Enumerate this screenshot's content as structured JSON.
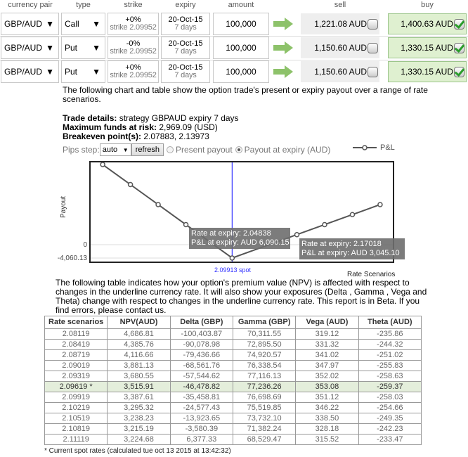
{
  "headers": {
    "pair": "currency pair",
    "type": "type",
    "strike": "strike",
    "expiry": "expiry",
    "amount": "amount",
    "sell": "sell",
    "buy": "buy"
  },
  "legs": [
    {
      "pair": "GBP/AUD",
      "type": "Call",
      "strike_pct": "+0%",
      "strike": "strike 2.09952",
      "expiry_date": "20-Oct-15",
      "expiry_days": "7 days",
      "amount": "100,000",
      "sell": "1,221.08 AUD",
      "sell_checked": false,
      "buy": "1,400.63 AUD",
      "buy_checked": true
    },
    {
      "pair": "GBP/AUD",
      "type": "Put",
      "strike_pct": "-0%",
      "strike": "strike 2.09952",
      "expiry_date": "20-Oct-15",
      "expiry_days": "7 days",
      "amount": "100,000",
      "sell": "1,150.60 AUD",
      "sell_checked": false,
      "buy": "1,330.15 AUD",
      "buy_checked": true
    },
    {
      "pair": "GBP/AUD",
      "type": "Put",
      "strike_pct": "+0%",
      "strike": "strike 2.09952",
      "expiry_date": "20-Oct-15",
      "expiry_days": "7 days",
      "amount": "100,000",
      "sell": "1,150.60 AUD",
      "sell_checked": false,
      "buy": "1,330.15 AUD",
      "buy_checked": true
    }
  ],
  "intro": "The following chart and table show the option trade's present or expiry payout over a range of rate scenarios.",
  "details": {
    "trade_label": "Trade details:",
    "trade": " strategy GBPAUD expiry 7 days",
    "risk_label": "Maximum funds at risk:",
    "risk": " 2,969.09 (USD)",
    "breakeven_label": "Breakeven point(s):",
    "breakeven": " 2.07883, 2.13973"
  },
  "controls": {
    "pips_label": "Pips step:",
    "pips_value": "auto",
    "refresh": "refresh",
    "present": "Present payout",
    "expiry": "Payout at expiry (AUD)",
    "selected": "expiry"
  },
  "colors": {
    "buy_bg": "#dff0d0",
    "arrow": "#8dc26a",
    "spot_line": "#3333ff",
    "series": "#555555"
  },
  "chart_data": {
    "type": "line",
    "ylabel": "Payout",
    "xlabel": "Rate Scenarios",
    "legend": "P&L",
    "legend_position": "top-right",
    "ytick_labels": [
      "0",
      "-4,060.13"
    ],
    "spot": 2.09913,
    "spot_label": "2.09913 spot",
    "xlim": [
      1.9423,
      2.277
    ],
    "ylim": [
      -5560,
      25430
    ],
    "series": [
      {
        "name": "P&L",
        "x": [
          1.95703,
          1.98748,
          2.01793,
          2.04838,
          2.09913,
          2.17018,
          2.20063,
          2.23108,
          2.26153
        ],
        "y": [
          24360,
          18270,
          12180,
          6090.15,
          -4060.13,
          3045.1,
          6090,
          9135,
          12180
        ]
      }
    ],
    "tooltips": [
      {
        "line1": "Rate at expiry: 2.04838",
        "line2": "P&L at expiry: AUD 6,090.15"
      },
      {
        "line1": "Rate at expiry: 2.17018",
        "line2": "P&L at expiry: AUD 3,045.10"
      }
    ]
  },
  "table_intro": "The following table indicates how your option's premium value (NPV) is affected with respect to changes in the underline currency rate. It will also show your exposures (Delta , Gamma , Vega and Theta) change with respect to changes in the underline currency rate. This report is in Beta. If you find errors, please contact us.",
  "table": {
    "columns": [
      "Rate scenarios",
      "NPV(AUD)",
      "Delta (GBP)",
      "Gamma (GBP)",
      "Vega (AUD)",
      "Theta (AUD)"
    ],
    "rows": [
      [
        "2.08119",
        "4,686.81",
        "-100,403.87",
        "70,311.55",
        "319.12",
        "-235.86"
      ],
      [
        "2.08419",
        "4,385.76",
        "-90,078.98",
        "72,895.50",
        "331.32",
        "-244.32"
      ],
      [
        "2.08719",
        "4,116.66",
        "-79,436.66",
        "74,920.57",
        "341.02",
        "-251.02"
      ],
      [
        "2.09019",
        "3,881.13",
        "-68,561.76",
        "76,338.54",
        "347.97",
        "-255.83"
      ],
      [
        "2.09319",
        "3,680.55",
        "-57,544.62",
        "77,116.13",
        "352.02",
        "-258.63"
      ],
      [
        "2.09619 *",
        "3,515.91",
        "-46,478.82",
        "77,236.26",
        "353.08",
        "-259.37"
      ],
      [
        "2.09919",
        "3,387.61",
        "-35,458.81",
        "76,698.69",
        "351.12",
        "-258.03"
      ],
      [
        "2.10219",
        "3,295.32",
        "-24,577.43",
        "75,519.85",
        "346.22",
        "-254.66"
      ],
      [
        "2.10519",
        "3,238.23",
        "-13,923.65",
        "73,732.10",
        "338.50",
        "-249.35"
      ],
      [
        "2.10819",
        "3,215.19",
        "-3,580.39",
        "71,382.24",
        "328.18",
        "-242.23"
      ],
      [
        "2.11119",
        "3,224.68",
        "6,377.33",
        "68,529.47",
        "315.52",
        "-233.47"
      ]
    ],
    "spot_row": 5
  },
  "footnote": "* Current spot rates (calculated tue oct 13 2015 at 13:42:32)"
}
